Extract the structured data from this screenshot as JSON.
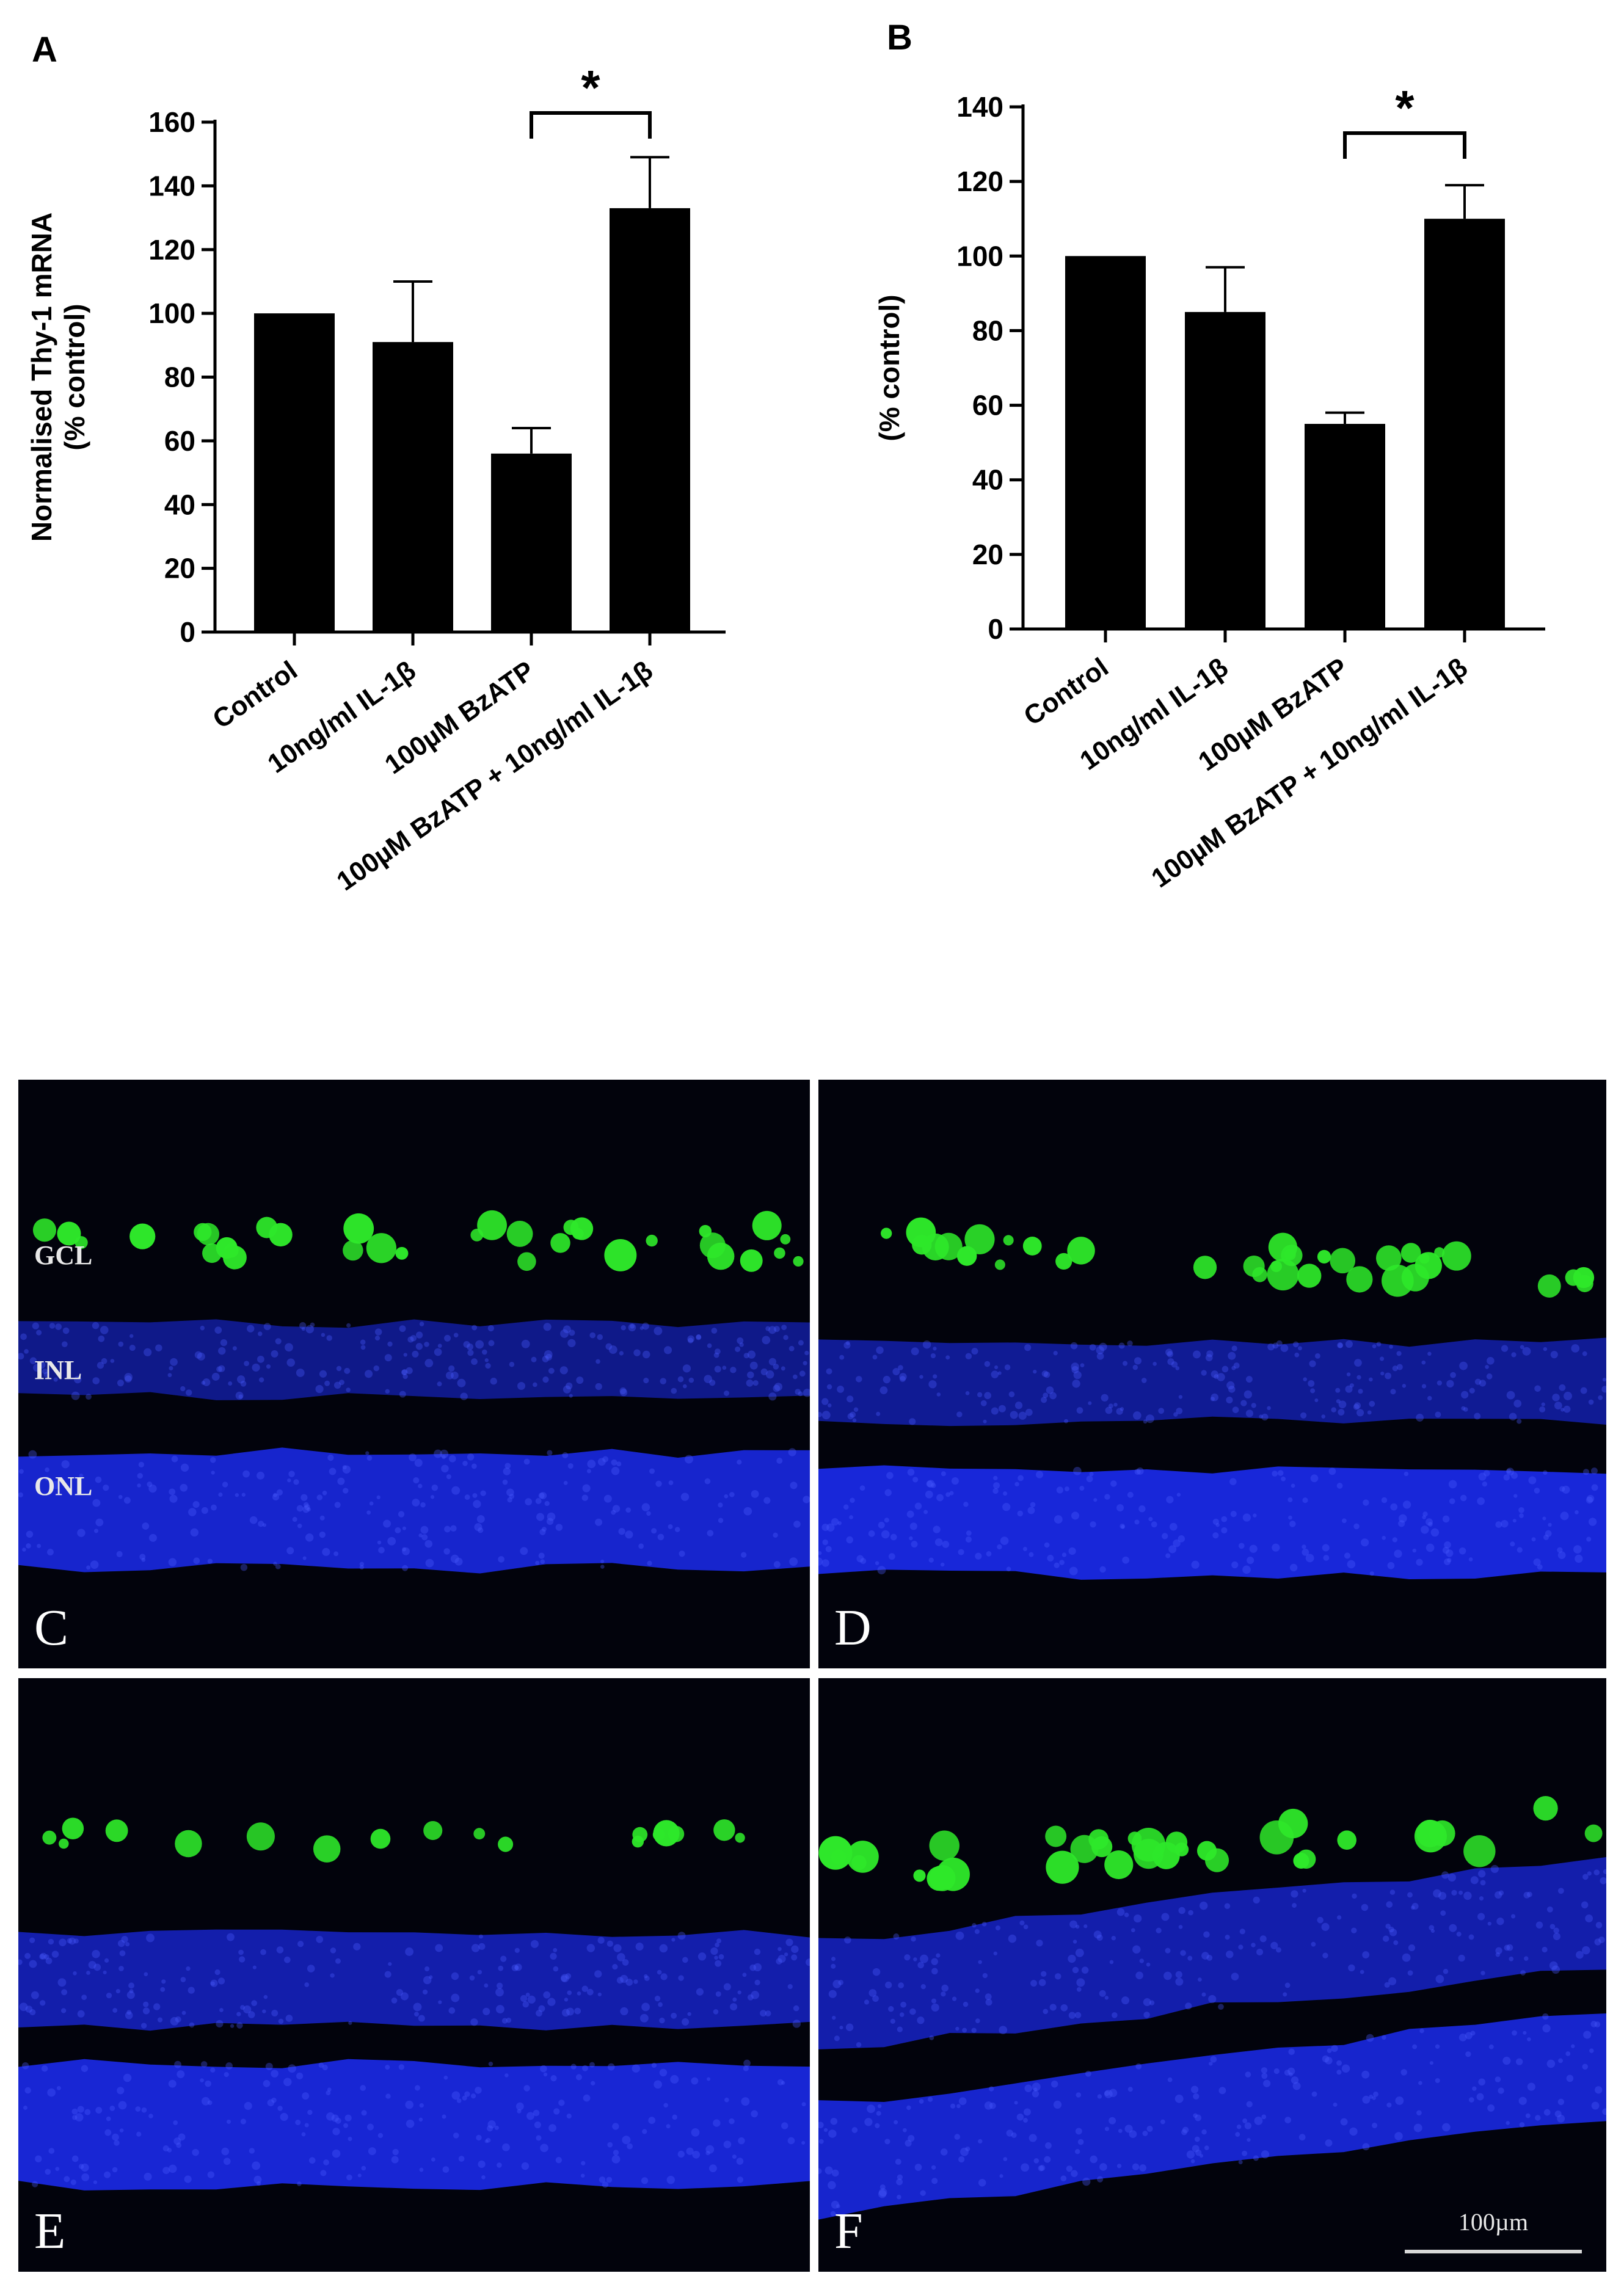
{
  "chart_data": [
    {
      "panel": "A",
      "type": "bar",
      "ylabel": "Normalised Thy-1 mRNA\n(% control)",
      "ylim": [
        0,
        160
      ],
      "yticks": [
        0,
        20,
        40,
        60,
        80,
        100,
        120,
        140,
        160
      ],
      "categories": [
        "Control",
        "10ng/ml IL-1β",
        "100µM BzATP",
        "100µM BzATP + 10ng/ml IL-1β"
      ],
      "values": [
        100,
        91,
        56,
        133
      ],
      "error": [
        0,
        19,
        8,
        16
      ],
      "significance": {
        "between": [
          2,
          3
        ],
        "label": "*"
      }
    },
    {
      "panel": "B",
      "type": "bar",
      "ylabel": "(% control)",
      "ylim": [
        0,
        140
      ],
      "yticks": [
        0,
        20,
        40,
        60,
        80,
        100,
        120,
        140
      ],
      "categories": [
        "Control",
        "10ng/ml IL-1β",
        "100µM BzATP",
        "100µM BzATP + 10ng/ml IL-1β"
      ],
      "values": [
        100,
        85,
        55,
        110
      ],
      "error": [
        0,
        12,
        3,
        9
      ],
      "significance": {
        "between": [
          2,
          3
        ],
        "label": "*"
      }
    }
  ],
  "micrographs": [
    {
      "letter": "C",
      "layers": [
        "GCL",
        "INL",
        "ONL"
      ]
    },
    {
      "letter": "D"
    },
    {
      "letter": "E"
    },
    {
      "letter": "F",
      "scale_bar": "100µm"
    }
  ],
  "colors": {
    "bar": "#000000",
    "nuclei": "#1b2bf0",
    "thy1": "#2ee82a",
    "background": "#02030c"
  }
}
